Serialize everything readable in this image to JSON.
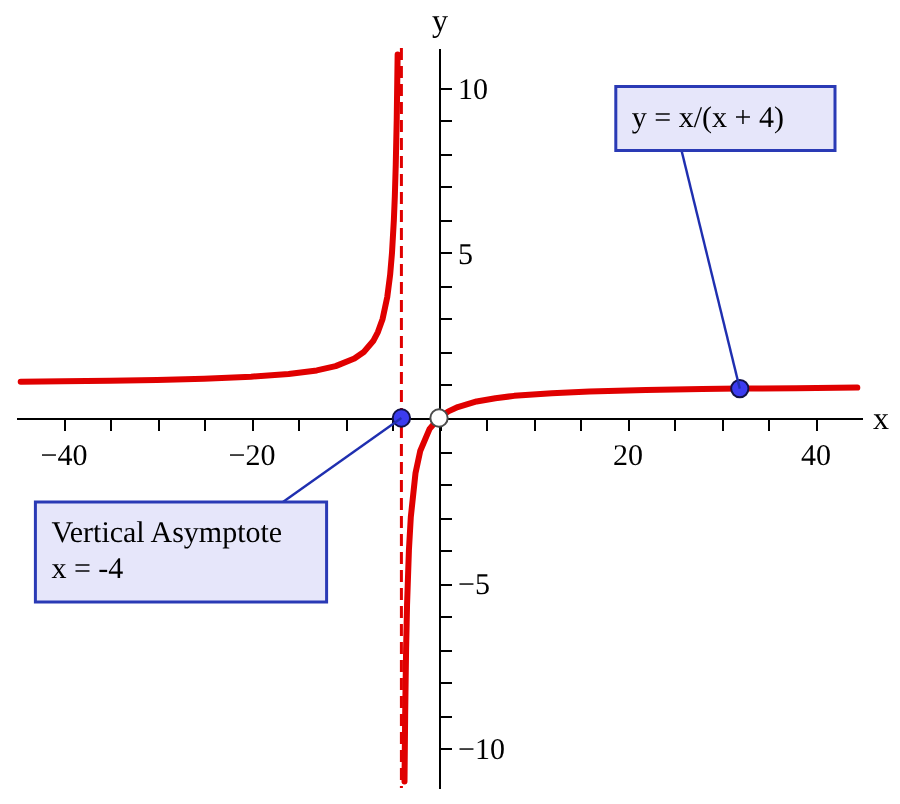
{
  "chart_data": {
    "type": "line",
    "xlabel": "x",
    "ylabel": "y",
    "xlim": [
      -45,
      45
    ],
    "ylim": [
      -11.2,
      11.2
    ],
    "xticks": [
      -40,
      {
        "value": -35,
        "label": null
      },
      {
        "value": -30,
        "label": null
      },
      {
        "value": -25,
        "label": null
      },
      -20,
      {
        "value": -15,
        "label": null
      },
      {
        "value": -10,
        "label": null
      },
      {
        "value": -5,
        "label": null
      },
      {
        "value": 0,
        "label": null
      },
      {
        "value": 5,
        "label": null
      },
      {
        "value": 10,
        "label": null
      },
      {
        "value": 15,
        "label": null
      },
      20,
      {
        "value": 25,
        "label": null
      },
      {
        "value": 30,
        "label": null
      },
      {
        "value": 35,
        "label": null
      },
      40
    ],
    "yticks": [
      -10,
      {
        "value": -9,
        "label": null
      },
      {
        "value": -8,
        "label": null
      },
      {
        "value": -7,
        "label": null
      },
      {
        "value": -6,
        "label": null
      },
      -5,
      {
        "value": -4,
        "label": null
      },
      {
        "value": -3,
        "label": null
      },
      {
        "value": -2,
        "label": null
      },
      {
        "value": -1,
        "label": null
      },
      {
        "value": 0,
        "label": null
      },
      {
        "value": 1,
        "label": null
      },
      {
        "value": 2,
        "label": null
      },
      {
        "value": 3,
        "label": null
      },
      {
        "value": 4,
        "label": null
      },
      5,
      {
        "value": 6,
        "label": null
      },
      {
        "value": 7,
        "label": null
      },
      {
        "value": 8,
        "label": null
      },
      {
        "value": 9,
        "label": null
      },
      10
    ],
    "series": [
      {
        "color": "#e00000",
        "x": [
          -44.5,
          -40,
          -35,
          -30,
          -25,
          -20,
          -16,
          -13,
          -11,
          -9,
          -8,
          -7,
          -6.5,
          -6,
          -5.5,
          -5.2,
          -5,
          -4.8,
          -4.7,
          -4.6,
          -4.5,
          -4.4,
          -4,
          -3.67,
          -3.6,
          -3.5,
          -3.4,
          -3.2,
          -3,
          -2.5,
          -2,
          -1,
          0,
          1,
          2,
          4,
          6,
          8,
          12,
          16,
          22,
          28,
          32,
          38,
          44.5
        ],
        "values": [
          1.1,
          1.11,
          1.13,
          1.15,
          1.19,
          1.25,
          1.33,
          1.44,
          1.57,
          1.8,
          2,
          2.33,
          2.6,
          3,
          3.67,
          4.33,
          5,
          6,
          6.71,
          7.67,
          9,
          11,
          null,
          -11,
          -9,
          -7,
          -5.67,
          -4,
          -3,
          -1.67,
          -1,
          -0.33,
          0,
          0.2,
          0.33,
          0.5,
          0.6,
          0.67,
          0.75,
          0.8,
          0.85,
          0.88,
          0.89,
          0.9,
          0.92
        ]
      },
      {
        "type": "scatter",
        "marker": "circle",
        "color": "#3c3cf0",
        "x": [
          -4,
          32
        ],
        "values": [
          0,
          0.89
        ]
      },
      {
        "type": "scatter",
        "marker": "circle",
        "color": "#ffffff",
        "x": [
          0
        ],
        "values": [
          0
        ]
      }
    ],
    "ref_lines": [
      {
        "axis": "x",
        "value": -4,
        "color": "#e00000",
        "line_style": "dashed"
      }
    ],
    "annotations": [
      {
        "text": "Vertical Asymptote\nx = -4",
        "x": -4,
        "y": 0
      },
      {
        "text": "y = x/(x + 4)",
        "x": 32,
        "y": 0.89
      }
    ]
  }
}
